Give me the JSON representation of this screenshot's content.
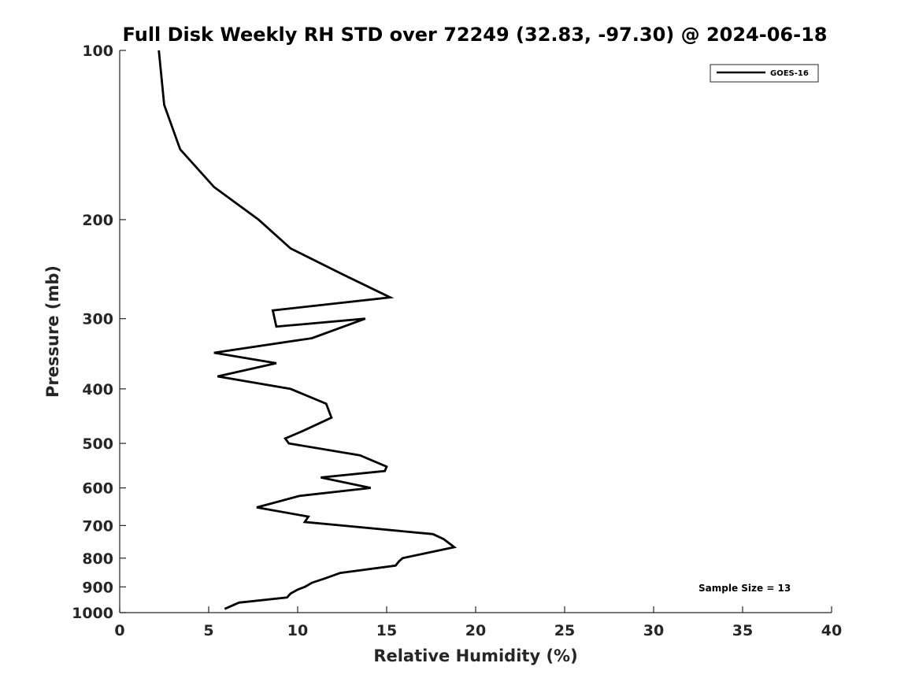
{
  "chart_data": {
    "type": "line",
    "title": "Full Disk Weekly RH STD over 72249 (32.83, -97.30) @ 2024-06-18",
    "xlabel": "Relative Humidity (%)",
    "ylabel": "Pressure (mb)",
    "xlim": [
      0,
      40
    ],
    "ylim": [
      1000,
      100
    ],
    "yscale": "log",
    "xticks": [
      "0",
      "5",
      "10",
      "15",
      "20",
      "25",
      "30",
      "35",
      "40"
    ],
    "yticks": [
      "100",
      "200",
      "300",
      "400",
      "500",
      "600",
      "700",
      "800",
      "900",
      "1000"
    ],
    "grid": false,
    "legend": "top-right",
    "annotation": "Sample Size = 13",
    "series": [
      {
        "name": "GOES-16",
        "color": "#000000",
        "points": [
          [
            2.2,
            100
          ],
          [
            2.5,
            125
          ],
          [
            3.4,
            150
          ],
          [
            5.3,
            175
          ],
          [
            7.8,
            200
          ],
          [
            9.6,
            225
          ],
          [
            12.5,
            250
          ],
          [
            15.2,
            275
          ],
          [
            8.6,
            290
          ],
          [
            8.8,
            310
          ],
          [
            13.8,
            300
          ],
          [
            10.8,
            325
          ],
          [
            5.3,
            345
          ],
          [
            8.8,
            360
          ],
          [
            5.5,
            380
          ],
          [
            9.6,
            400
          ],
          [
            11.6,
            425
          ],
          [
            11.9,
            450
          ],
          [
            10.3,
            475
          ],
          [
            9.3,
            490
          ],
          [
            9.5,
            500
          ],
          [
            13.5,
            525
          ],
          [
            15.0,
            550
          ],
          [
            14.9,
            560
          ],
          [
            11.3,
            575
          ],
          [
            14.1,
            600
          ],
          [
            10.1,
            620
          ],
          [
            7.7,
            650
          ],
          [
            10.6,
            675
          ],
          [
            10.4,
            690
          ],
          [
            12.5,
            700
          ],
          [
            17.6,
            725
          ],
          [
            18.2,
            740
          ],
          [
            18.8,
            765
          ],
          [
            15.9,
            800
          ],
          [
            15.7,
            810
          ],
          [
            15.5,
            825
          ],
          [
            12.4,
            850
          ],
          [
            11.5,
            870
          ],
          [
            10.8,
            885
          ],
          [
            10.4,
            900
          ],
          [
            10.0,
            910
          ],
          [
            9.6,
            925
          ],
          [
            9.4,
            940
          ],
          [
            6.7,
            960
          ],
          [
            5.9,
            985
          ]
        ]
      }
    ]
  }
}
